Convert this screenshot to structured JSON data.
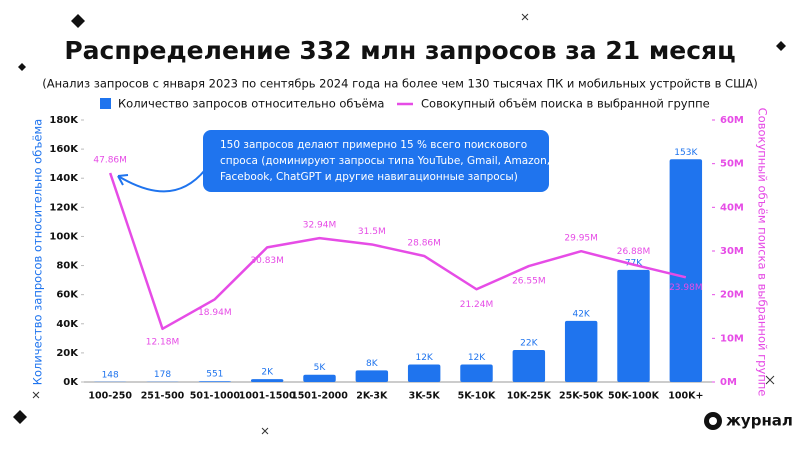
{
  "chart_data": {
    "type": "bar-line",
    "title": "Распределение 332 млн запросов за 21 месяц",
    "subtitle": "(Анализ запросов с января 2023 по сентябрь 2024 года на более чем 130 тысячах ПК и мобильных устройств в США)",
    "y_label": "Количество запросов относительно объёма",
    "y2_label": "Совокупный объём поиска в выбранной группе",
    "categories": [
      "100-250",
      "251-500",
      "501-1000",
      "1001-1500",
      "1501-2000",
      "2K-3K",
      "3K-5K",
      "5K-10K",
      "10K-25K",
      "25K-50K",
      "50K-100K",
      "100K+"
    ],
    "series": [
      {
        "name": "Количество запросов относительно объёма",
        "type": "bar",
        "color": "#1f74ee",
        "values": [
          148,
          178,
          551,
          2000,
          5000,
          8000,
          12000,
          12000,
          22000,
          42000,
          77000,
          153000
        ],
        "value_labels": [
          "148",
          "178",
          "551",
          "2K",
          "5K",
          "8K",
          "12K",
          "12K",
          "22K",
          "42K",
          "77K",
          "153K"
        ]
      },
      {
        "name": "Совокупный объём поиска в выбранной группе",
        "type": "line",
        "axis": "y2",
        "color": "#e64ce6",
        "values": [
          47.86,
          12.18,
          18.94,
          30.83,
          32.94,
          31.5,
          28.86,
          21.24,
          26.55,
          29.95,
          26.88,
          23.98
        ],
        "value_labels": [
          "47.86M",
          "12.18M",
          "18.94M",
          "30.83M",
          "32.94M",
          "31.5M",
          "28.86M",
          "21.24M",
          "26.55M",
          "29.95M",
          "26.88M",
          "23.98M"
        ]
      }
    ],
    "ylim": [
      0,
      180000
    ],
    "yticks": [
      {
        "value": 0,
        "label": "0K"
      },
      {
        "value": 20000,
        "label": "20K"
      },
      {
        "value": 40000,
        "label": "40K"
      },
      {
        "value": 60000,
        "label": "60K"
      },
      {
        "value": 80000,
        "label": "80K"
      },
      {
        "value": 100000,
        "label": "100K"
      },
      {
        "value": 120000,
        "label": "120K"
      },
      {
        "value": 140000,
        "label": "140K"
      },
      {
        "value": 160000,
        "label": "160K"
      },
      {
        "value": 180000,
        "label": "180K"
      }
    ],
    "y2lim": [
      0,
      60
    ],
    "y2ticks": [
      {
        "value": 0,
        "label": "0M"
      },
      {
        "value": 10,
        "label": "10M"
      },
      {
        "value": 20,
        "label": "20M"
      },
      {
        "value": 30,
        "label": "30M"
      },
      {
        "value": 40,
        "label": "40M"
      },
      {
        "value": 50,
        "label": "50M"
      },
      {
        "value": 60,
        "label": "60M"
      }
    ],
    "grid": false,
    "annotation": [
      "150 запросов делают примерно 15 % всего поискового",
      "спроса (доминируют запросы типа YouTube, Gmail, Amazon,",
      "Facebook, ChatGPT и другие навигационные запросы)"
    ],
    "logo": "журнал"
  }
}
